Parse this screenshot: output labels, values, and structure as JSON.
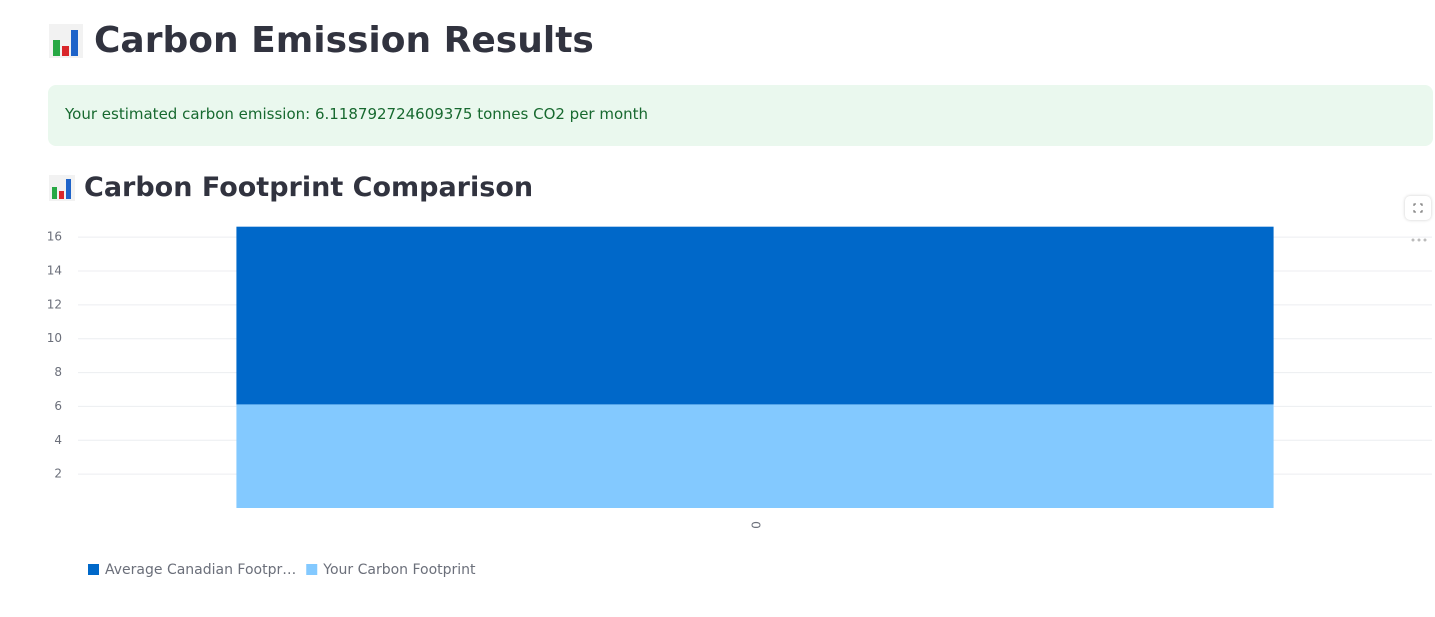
{
  "header": {
    "title": "Carbon Emission Results"
  },
  "alert": {
    "text": "Your estimated carbon emission: 6.118792724609375 tonnes CO2 per month"
  },
  "section": {
    "title": "Carbon Footprint Comparison"
  },
  "chart_data": {
    "type": "stacked_bar",
    "categories": [
      "0"
    ],
    "series": [
      {
        "name": "Average Canadian Footpr…",
        "color": "#0068c9",
        "values": [
          10.5
        ]
      },
      {
        "name": "Your Carbon Footprint",
        "color": "#83c9ff",
        "values": [
          6.118792724609375
        ]
      }
    ],
    "ylim": [
      0,
      16.6
    ],
    "yticks": [
      2,
      4,
      6,
      8,
      10,
      12,
      14,
      16
    ],
    "grid": true
  }
}
